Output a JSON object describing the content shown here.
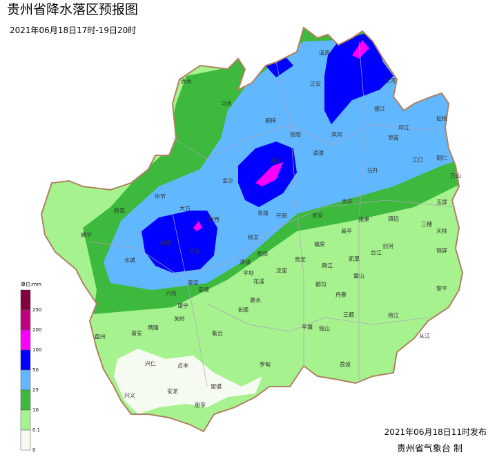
{
  "header": {
    "title": "贵州省降水落区预报图",
    "subtitle": "2021年06月18日17时-19日20时"
  },
  "legend": {
    "unit": "单位:mm",
    "levels": [
      {
        "value": 250,
        "color": "#c0007f"
      },
      {
        "value": 200,
        "color": "#fa00fa"
      },
      {
        "value": 100,
        "color": "#0000fe"
      },
      {
        "value": 50,
        "color": "#61b8ff"
      },
      {
        "value": 25,
        "color": "#3dba3d"
      },
      {
        "value": 10,
        "color": "#a6f28f"
      },
      {
        "value": 0.1,
        "color": "#f5fbf0"
      },
      {
        "value": 0,
        "color": "#f5fbf0"
      }
    ],
    "top_color": "#800040"
  },
  "places": [
    "道真",
    "正安",
    "沿河",
    "德江",
    "习水",
    "赤水",
    "桐梓",
    "绥阳",
    "凤冈",
    "思南",
    "印江",
    "松桃",
    "湄潭",
    "江口",
    "石阡",
    "铜仁",
    "遵义",
    "金沙",
    "余庆",
    "万山",
    "毕节",
    "大方",
    "黔西",
    "息烽",
    "开阳",
    "瓮安",
    "玉屏",
    "赫章",
    "镇远",
    "三穗",
    "施秉",
    "黄平",
    "天柱",
    "威宁",
    "纳雍",
    "织金",
    "修文",
    "福泉",
    "剑河",
    "台江",
    "锦屏",
    "水城",
    "清镇",
    "贵阳",
    "贵定",
    "麻江",
    "凯里",
    "龙里",
    "平坝",
    "花溪",
    "雷山",
    "都匀",
    "普定",
    "安顺",
    "六枝",
    "丹寨",
    "黎平",
    "镇宁",
    "惠水",
    "长顺",
    "三都",
    "榕江",
    "关岭",
    "晴隆",
    "普安",
    "紫云",
    "平塘",
    "独山",
    "盘州",
    "从江",
    "兴仁",
    "贞丰",
    "罗甸",
    "荔波",
    "望谟",
    "兴义",
    "安龙",
    "册亨"
  ],
  "footer": {
    "issued": "2021年06月18日11时发布",
    "agency": "贵州省气象台 制"
  }
}
